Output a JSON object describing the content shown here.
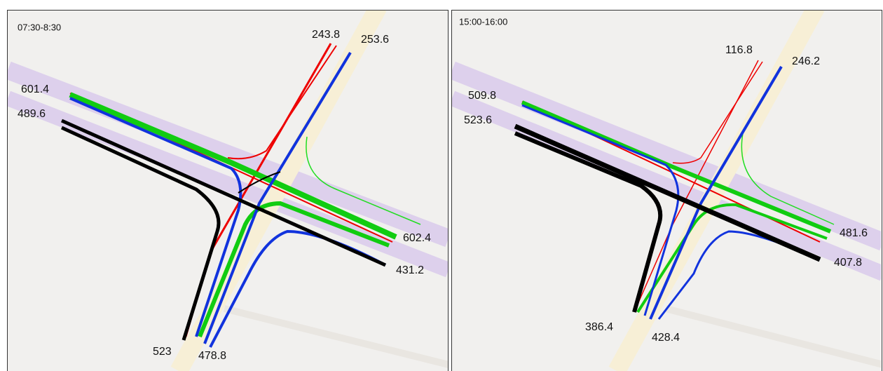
{
  "panels": [
    {
      "title": "07:30-8:30",
      "labels": [
        243.8,
        253.6,
        601.4,
        489.6,
        602.4,
        431.2,
        523,
        478.8
      ]
    },
    {
      "title": "15:00-16:00",
      "labels": [
        116.8,
        246.2,
        509.8,
        523.6,
        481.6,
        407.8,
        386.4,
        428.4
      ]
    }
  ]
}
